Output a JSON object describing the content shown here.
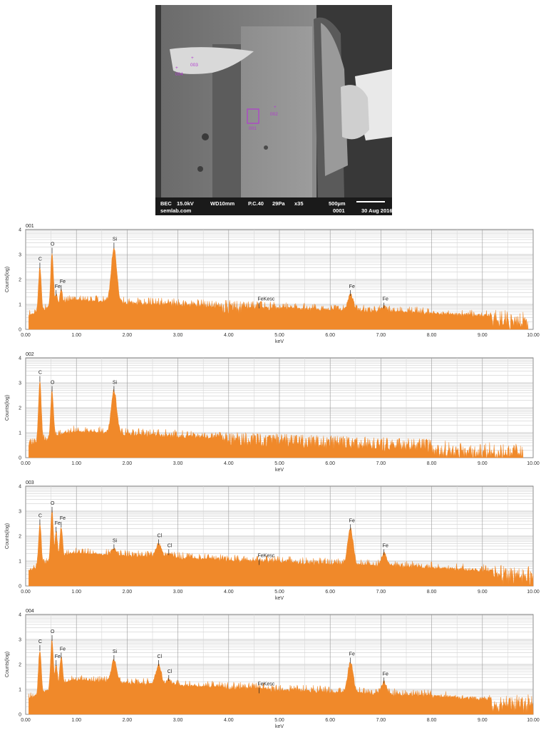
{
  "sem_image": {
    "info_bar": {
      "mode": "BEC",
      "voltage": "15.0kV",
      "wd": "WD10mm",
      "pc": "P.C.40",
      "pressure": "29Pa",
      "mag": "x35",
      "scale": "500µm",
      "source": "semlab.com",
      "image_no": "0001",
      "date": "30 Aug 2016"
    },
    "markers": [
      "001",
      "002",
      "003",
      "004"
    ],
    "marker_color": "#b23bd0"
  },
  "chart_data": [
    {
      "type": "area",
      "id": "001",
      "xlabel": "keV",
      "ylabel": "Counts(log)",
      "xlim": [
        0,
        10
      ],
      "ylim": [
        0,
        4
      ],
      "xticks": [
        "0.00",
        "1.00",
        "2.00",
        "3.00",
        "4.00",
        "5.00",
        "6.00",
        "7.00",
        "8.00",
        "9.00",
        "10.00"
      ],
      "yticks": [
        "0",
        "1",
        "2",
        "3",
        "4"
      ],
      "color": "#f0892a",
      "baseline": 1.15,
      "falloff": 0.4,
      "end_keV": 9.9,
      "peaks": [
        {
          "label": "C",
          "x": 0.28,
          "y": 2.5
        },
        {
          "label": "O",
          "x": 0.52,
          "y": 3.1
        },
        {
          "label": "Fe",
          "x": 0.7,
          "y": 1.6
        },
        {
          "label": "Fe",
          "x": 0.6,
          "y": 1.4
        },
        {
          "label": "Si",
          "x": 1.74,
          "y": 3.3
        },
        {
          "label": "FeKesc",
          "x": 4.6,
          "y": 0.9
        },
        {
          "label": "Fe",
          "x": 6.4,
          "y": 1.4
        },
        {
          "label": "Fe",
          "x": 7.06,
          "y": 0.9
        }
      ]
    },
    {
      "type": "area",
      "id": "002",
      "xlabel": "keV",
      "ylabel": "Counts(log)",
      "xlim": [
        0,
        10
      ],
      "ylim": [
        0,
        4
      ],
      "xticks": [
        "0.00",
        "1.00",
        "2.00",
        "3.00",
        "4.00",
        "5.00",
        "6.00",
        "7.00",
        "8.00",
        "9.00",
        "10.00"
      ],
      "yticks": [
        "0",
        "1",
        "2",
        "3",
        "4"
      ],
      "color": "#f0892a",
      "baseline": 1.05,
      "falloff": 0.55,
      "end_keV": 9.8,
      "peaks": [
        {
          "label": "C",
          "x": 0.28,
          "y": 3.1
        },
        {
          "label": "O",
          "x": 0.52,
          "y": 2.7
        },
        {
          "label": "Si",
          "x": 1.74,
          "y": 2.7
        }
      ]
    },
    {
      "type": "area",
      "id": "003",
      "xlabel": "keV",
      "ylabel": "Counts(log)",
      "xlim": [
        0,
        10
      ],
      "ylim": [
        0,
        4
      ],
      "xticks": [
        "0.00",
        "1.00",
        "2.00",
        "3.00",
        "4.00",
        "5.00",
        "6.00",
        "7.00",
        "8.00",
        "9.00",
        "10.00"
      ],
      "yticks": [
        "0",
        "1",
        "2",
        "3",
        "4"
      ],
      "color": "#f0892a",
      "baseline": 1.3,
      "falloff": 0.45,
      "end_keV": 10.0,
      "peaks": [
        {
          "label": "C",
          "x": 0.28,
          "y": 2.5
        },
        {
          "label": "O",
          "x": 0.52,
          "y": 3.0
        },
        {
          "label": "Fe",
          "x": 0.6,
          "y": 2.2
        },
        {
          "label": "Fe",
          "x": 0.7,
          "y": 2.4
        },
        {
          "label": "Si",
          "x": 1.74,
          "y": 1.5
        },
        {
          "label": "Cl",
          "x": 2.62,
          "y": 1.7
        },
        {
          "label": "Cl",
          "x": 2.82,
          "y": 1.3
        },
        {
          "label": "FeKesc",
          "x": 4.6,
          "y": 0.9
        },
        {
          "label": "Fe",
          "x": 6.4,
          "y": 2.3
        },
        {
          "label": "Fe",
          "x": 7.06,
          "y": 1.3
        }
      ]
    },
    {
      "type": "area",
      "id": "004",
      "xlabel": "keV",
      "ylabel": "Counts(log)",
      "xlim": [
        0,
        10
      ],
      "ylim": [
        0,
        4
      ],
      "xticks": [
        "0.00",
        "1.00",
        "2.00",
        "3.00",
        "4.00",
        "5.00",
        "6.00",
        "7.00",
        "8.00",
        "9.00",
        "10.00"
      ],
      "yticks": [
        "0",
        "1",
        "2",
        "3",
        "4"
      ],
      "color": "#f0892a",
      "baseline": 1.35,
      "falloff": 0.5,
      "end_keV": 10.0,
      "peaks": [
        {
          "label": "C",
          "x": 0.28,
          "y": 2.6
        },
        {
          "label": "O",
          "x": 0.52,
          "y": 3.0
        },
        {
          "label": "Fe",
          "x": 0.6,
          "y": 2.0
        },
        {
          "label": "Fe",
          "x": 0.7,
          "y": 2.3
        },
        {
          "label": "Si",
          "x": 1.74,
          "y": 2.2
        },
        {
          "label": "Cl",
          "x": 2.62,
          "y": 2.0
        },
        {
          "label": "Cl",
          "x": 2.82,
          "y": 1.4
        },
        {
          "label": "FeKesc",
          "x": 4.6,
          "y": 0.9
        },
        {
          "label": "Fe",
          "x": 6.4,
          "y": 2.1
        },
        {
          "label": "Fe",
          "x": 7.06,
          "y": 1.3
        }
      ]
    }
  ]
}
